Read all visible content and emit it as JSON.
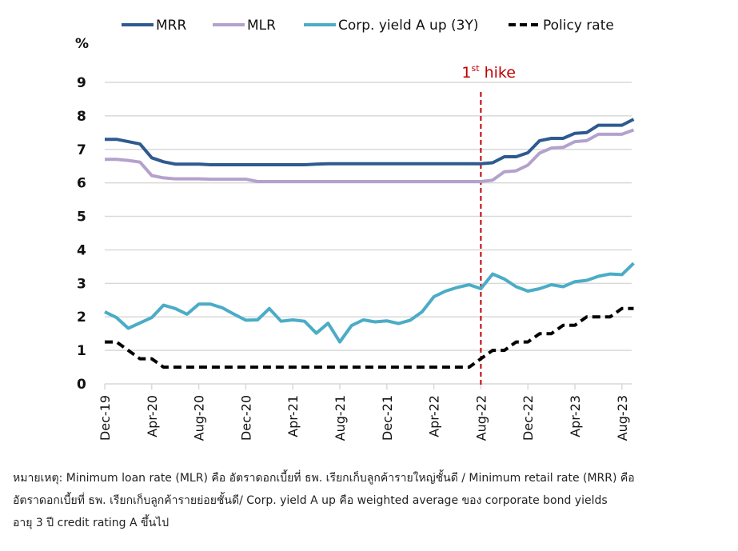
{
  "chart_data": {
    "type": "line",
    "title": "",
    "ylabel": "%",
    "xlabel": "",
    "ylim": [
      0,
      9
    ],
    "yticks": [
      "0",
      "1",
      "2",
      "3",
      "4",
      "5",
      "6",
      "7",
      "8",
      "9"
    ],
    "grid": true,
    "legend_position": "top",
    "x": [
      "Dec-19",
      "Jan-20",
      "Feb-20",
      "Mar-20",
      "Apr-20",
      "May-20",
      "Jun-20",
      "Jul-20",
      "Aug-20",
      "Sep-20",
      "Oct-20",
      "Nov-20",
      "Dec-20",
      "Jan-21",
      "Feb-21",
      "Mar-21",
      "Apr-21",
      "May-21",
      "Jun-21",
      "Jul-21",
      "Aug-21",
      "Sep-21",
      "Oct-21",
      "Nov-21",
      "Dec-21",
      "Jan-22",
      "Feb-22",
      "Mar-22",
      "Apr-22",
      "May-22",
      "Jun-22",
      "Jul-22",
      "Aug-22",
      "Sep-22",
      "Oct-22",
      "Nov-22",
      "Dec-22",
      "Jan-23",
      "Feb-23",
      "Mar-23",
      "Apr-23",
      "May-23",
      "Jun-23",
      "Jul-23",
      "Aug-23",
      "Sep-23"
    ],
    "xtick_labels": [
      "Dec-19",
      "Apr-20",
      "Aug-20",
      "Dec-20",
      "Apr-21",
      "Aug-21",
      "Dec-21",
      "Apr-22",
      "Aug-22",
      "Dec-22",
      "Apr-23",
      "Aug-23"
    ],
    "series": [
      {
        "name": "MRR",
        "color": "#2e5a8f",
        "style": "solid",
        "values": [
          7.3,
          7.3,
          7.23,
          7.16,
          6.75,
          6.63,
          6.56,
          6.56,
          6.56,
          6.54,
          6.54,
          6.54,
          6.54,
          6.54,
          6.54,
          6.54,
          6.54,
          6.54,
          6.56,
          6.57,
          6.57,
          6.57,
          6.57,
          6.57,
          6.57,
          6.57,
          6.57,
          6.57,
          6.57,
          6.57,
          6.57,
          6.57,
          6.57,
          6.6,
          6.78,
          6.78,
          6.9,
          7.26,
          7.33,
          7.33,
          7.48,
          7.5,
          7.72,
          7.72,
          7.72,
          7.9
        ]
      },
      {
        "name": "MLR",
        "color": "#b3a2cc",
        "style": "solid",
        "values": [
          6.7,
          6.7,
          6.67,
          6.62,
          6.22,
          6.15,
          6.12,
          6.12,
          6.12,
          6.11,
          6.11,
          6.11,
          6.11,
          6.04,
          6.04,
          6.04,
          6.04,
          6.04,
          6.04,
          6.04,
          6.04,
          6.04,
          6.04,
          6.04,
          6.04,
          6.04,
          6.04,
          6.04,
          6.04,
          6.04,
          6.04,
          6.04,
          6.04,
          6.08,
          6.33,
          6.36,
          6.53,
          6.89,
          7.04,
          7.06,
          7.23,
          7.26,
          7.45,
          7.45,
          7.45,
          7.58
        ]
      },
      {
        "name": "Corp. yield A up (3Y)",
        "color": "#4bacc6",
        "style": "solid",
        "values": [
          2.15,
          1.98,
          1.66,
          1.82,
          1.98,
          2.35,
          2.25,
          2.08,
          2.38,
          2.38,
          2.27,
          2.08,
          1.9,
          1.91,
          2.25,
          1.87,
          1.91,
          1.87,
          1.51,
          1.81,
          1.25,
          1.74,
          1.91,
          1.85,
          1.88,
          1.8,
          1.9,
          2.15,
          2.6,
          2.77,
          2.88,
          2.96,
          2.84,
          3.28,
          3.13,
          2.9,
          2.77,
          2.84,
          2.96,
          2.9,
          3.05,
          3.09,
          3.21,
          3.28,
          3.26,
          3.6
        ]
      },
      {
        "name": "Policy rate",
        "color": "#000000",
        "style": "dashed",
        "values": [
          1.25,
          1.25,
          1.0,
          0.75,
          0.75,
          0.5,
          0.5,
          0.5,
          0.5,
          0.5,
          0.5,
          0.5,
          0.5,
          0.5,
          0.5,
          0.5,
          0.5,
          0.5,
          0.5,
          0.5,
          0.5,
          0.5,
          0.5,
          0.5,
          0.5,
          0.5,
          0.5,
          0.5,
          0.5,
          0.5,
          0.5,
          0.5,
          0.75,
          1.0,
          1.0,
          1.25,
          1.25,
          1.5,
          1.5,
          1.75,
          1.75,
          2.0,
          2.0,
          2.0,
          2.25,
          2.25
        ]
      }
    ],
    "annotations": [
      {
        "text_main": "1",
        "text_sup": "st",
        "text_rest": " hike",
        "x": "Aug-22",
        "style": "vertical-dashed-line",
        "color": "#c00000"
      }
    ]
  },
  "footnote": {
    "lines": [
      "หมายเหตุ: Minimum loan rate (MLR) คือ อัตราดอกเบี้ยที่ ธพ. เรียกเก็บลูกค้ารายใหญ่ชั้นดี / Minimum retail rate (MRR) คือ",
      "อัตราดอกเบี้ยที่ ธพ. เรียกเก็บลูกค้ารายย่อยชั้นดี/ Corp. yield A up คือ weighted average ของ corporate bond yields",
      "อายุ 3 ปี credit rating A ขึ้นไป"
    ]
  }
}
